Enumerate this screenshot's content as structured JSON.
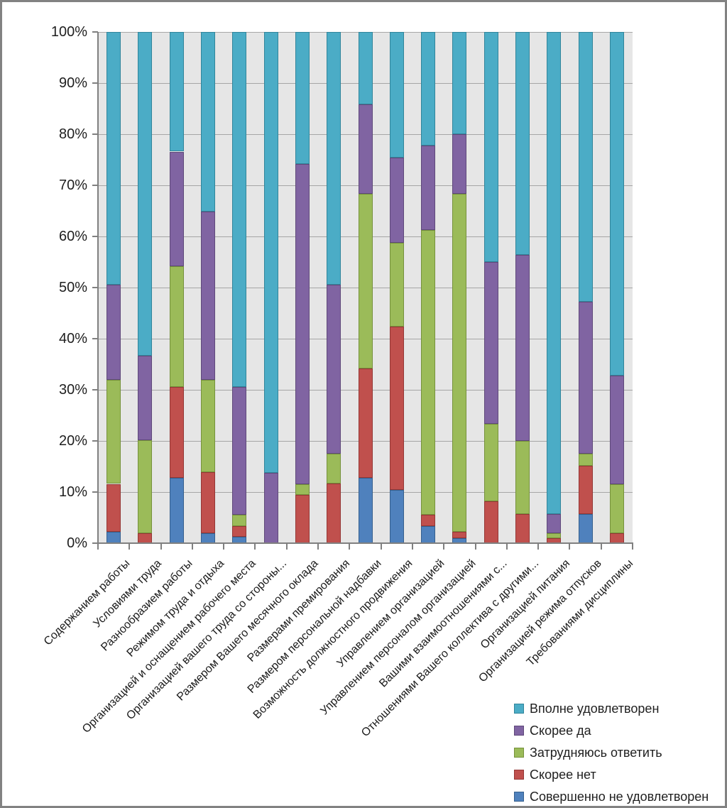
{
  "chart_data": {
    "type": "bar",
    "subtype": "stacked-100-percent-column",
    "title": "",
    "grid": true,
    "plot_bg": "#E6E6E6",
    "gridline_color": "#A6A6A6",
    "axis_color": "#808080",
    "frame_border_color": "#828282",
    "categories": [
      "Содержанием работы",
      "Условиями труда",
      "Разнообразием работы",
      "Режимом труда и отдыха",
      "Организацией и оснащением рабочего места",
      "Организацией вашего труда со стороны...",
      "Размером Вашего месячного оклада",
      "Размерами премирования",
      "Размером персональной надбавки",
      "Возможность должностного продвижения",
      "Управлением организацией",
      "Управлением персоналом организацией",
      "Вашими взаимоотношениями с...",
      "Отношениями Вашего коллектива с другими...",
      "Организацией питания",
      "Организацией  режима отпусков",
      "Требованиями дисциплины"
    ],
    "series": [
      {
        "name": "Совершенно не удовлетворен",
        "color": "#4F81BD",
        "border_color": "#36608E",
        "values": [
          2.2,
          0,
          12.8,
          2.0,
          1.2,
          0,
          0,
          0,
          12.8,
          10.4,
          3.3,
          1.0,
          0,
          0,
          0,
          5.7,
          0
        ]
      },
      {
        "name": "Скорее нет",
        "color": "#C0504D",
        "border_color": "#953735",
        "values": [
          9.4,
          2.0,
          17.7,
          11.9,
          2.1,
          0,
          9.4,
          11.6,
          21.4,
          31.9,
          2.3,
          1.2,
          8.2,
          5.7,
          1.0,
          9.4,
          2.0
        ]
      },
      {
        "name": "Затрудняюсь ответить",
        "color": "#9BBB59",
        "border_color": "#76923C",
        "values": [
          20.3,
          18.1,
          23.7,
          18.0,
          2.3,
          0,
          2.1,
          5.9,
          34.1,
          16.5,
          55.6,
          66.1,
          15.1,
          14.3,
          1.0,
          2.4,
          9.5
        ]
      },
      {
        "name": "Скорее да",
        "color": "#8064A2",
        "border_color": "#5F497A",
        "values": [
          18.6,
          16.5,
          22.4,
          32.9,
          24.9,
          13.8,
          62.7,
          33.1,
          17.6,
          16.6,
          16.6,
          11.7,
          31.7,
          36.4,
          3.7,
          29.7,
          21.3
        ]
      },
      {
        "name": "Вполне удовлетворен",
        "color": "#4BACC6",
        "border_color": "#31859B",
        "values": [
          49.5,
          63.4,
          23.4,
          35.2,
          69.5,
          86.2,
          25.8,
          49.4,
          14.1,
          24.6,
          22.2,
          20.0,
          45.0,
          43.6,
          94.3,
          52.8,
          67.2
        ]
      }
    ],
    "y_axis": {
      "min": 0,
      "max": 100,
      "tick_labels": [
        "0%",
        "10%",
        "20%",
        "30%",
        "40%",
        "50%",
        "60%",
        "70%",
        "80%",
        "90%",
        "100%"
      ]
    },
    "legend": {
      "position": "bottom-right",
      "order": [
        4,
        3,
        2,
        1,
        0
      ]
    }
  }
}
